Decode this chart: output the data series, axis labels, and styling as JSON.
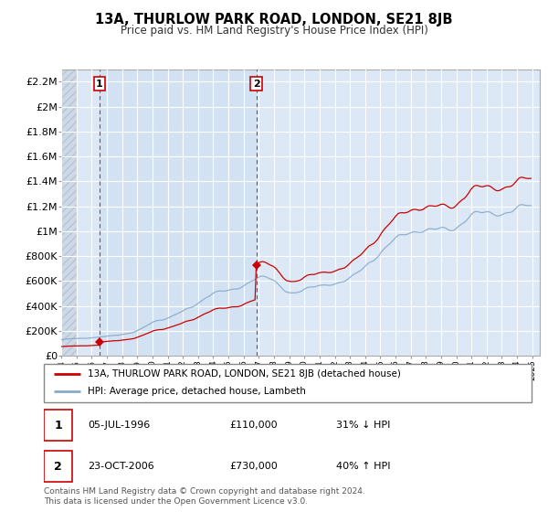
{
  "title": "13A, THURLOW PARK ROAD, LONDON, SE21 8JB",
  "subtitle": "Price paid vs. HM Land Registry's House Price Index (HPI)",
  "ylim": [
    0,
    2300000
  ],
  "yticks": [
    0,
    200000,
    400000,
    600000,
    800000,
    1000000,
    1200000,
    1400000,
    1600000,
    1800000,
    2000000,
    2200000
  ],
  "ytick_labels": [
    "£0",
    "£200K",
    "£400K",
    "£600K",
    "£800K",
    "£1M",
    "£1.2M",
    "£1.4M",
    "£1.6M",
    "£1.8M",
    "£2M",
    "£2.2M"
  ],
  "xlim_start": 1994.0,
  "xlim_end": 2025.5,
  "property_color": "#cc0000",
  "hpi_color": "#88aacc",
  "property_label": "13A, THURLOW PARK ROAD, LONDON, SE21 8JB (detached house)",
  "hpi_label": "HPI: Average price, detached house, Lambeth",
  "transaction1_label": "1",
  "transaction1_date": "05-JUL-1996",
  "transaction1_price": "£110,000",
  "transaction1_hpi": "31% ↓ HPI",
  "transaction1_year": 1996.5,
  "transaction1_value": 110000,
  "transaction2_label": "2",
  "transaction2_date": "23-OCT-2006",
  "transaction2_price": "£730,000",
  "transaction2_hpi": "40% ↑ HPI",
  "transaction2_year": 2006.83,
  "transaction2_value": 730000,
  "footer": "Contains HM Land Registry data © Crown copyright and database right 2024.\nThis data is licensed under the Open Government Licence v3.0.",
  "background_color": "#dce8f5",
  "plot_bg_color": "#dce8f5",
  "hatch_color": "#c0ccd8"
}
